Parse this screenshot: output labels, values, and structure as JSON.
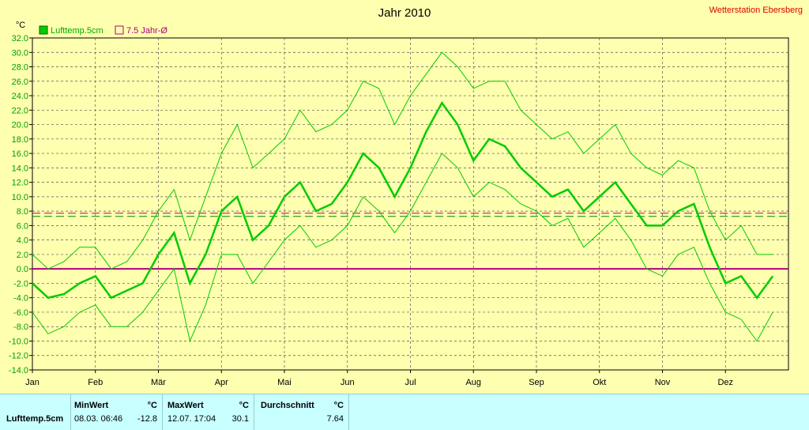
{
  "chart_data": {
    "type": "line",
    "title": "Jahr 2010",
    "station": "Wetterstation Ebersberg",
    "yunit": "°C",
    "ylim": [
      -14,
      32
    ],
    "yticks": [
      "32.0",
      "30.0",
      "28.0",
      "26.0",
      "24.0",
      "22.0",
      "20.0",
      "18.0",
      "16.0",
      "14.0",
      "12.0",
      "10.0",
      "8.0",
      "6.0",
      "4.0",
      "2.0",
      "0.0",
      "-2.0",
      "-4.0",
      "-6.0",
      "-8.0",
      "-10.0",
      "-12.0",
      "-14.0"
    ],
    "months": [
      "Jan",
      "Feb",
      "Mär",
      "Apr",
      "Mai",
      "Jun",
      "Jul",
      "Aug",
      "Sep",
      "Okt",
      "Nov",
      "Dez"
    ],
    "grid": true,
    "legend_position": "top-left",
    "series": [
      {
        "name": "Lufttemp.5cm",
        "color": "#00cc00",
        "x_month": [
          0,
          0.25,
          0.5,
          0.75,
          1,
          1.25,
          1.5,
          1.75,
          2,
          2.25,
          2.5,
          2.75,
          3,
          3.25,
          3.5,
          3.75,
          4,
          4.25,
          4.5,
          4.75,
          5,
          5.25,
          5.5,
          5.75,
          6,
          6.25,
          6.5,
          6.75,
          7,
          7.25,
          7.5,
          7.75,
          8,
          8.25,
          8.5,
          8.75,
          9,
          9.25,
          9.5,
          9.75,
          10,
          10.25,
          10.5,
          10.75,
          11,
          11.25,
          11.5,
          11.75
        ],
        "mean": [
          -2,
          -4,
          -3.5,
          -2,
          -1,
          -4,
          -3,
          -2,
          2,
          5,
          -2,
          2,
          8,
          10,
          4,
          6,
          10,
          12,
          8,
          9,
          12,
          16,
          14,
          10,
          14,
          19,
          23,
          20,
          15,
          18,
          17,
          14,
          12,
          10,
          11,
          8,
          10,
          12,
          9,
          6,
          6,
          8,
          9,
          3,
          -2,
          -1,
          -4,
          -1
        ],
        "max": [
          2,
          0,
          1,
          3,
          3,
          0,
          1,
          4,
          8,
          11,
          4,
          10,
          16,
          20,
          14,
          16,
          18,
          22,
          19,
          20,
          22,
          26,
          25,
          20,
          24,
          27,
          30,
          28,
          25,
          26,
          26,
          22,
          20,
          18,
          19,
          16,
          18,
          20,
          16,
          14,
          13,
          15,
          14,
          8,
          4,
          6,
          2,
          2
        ],
        "min": [
          -6,
          -9,
          -8,
          -6,
          -5,
          -8,
          -8,
          -6,
          -3,
          0,
          -10,
          -5,
          2,
          2,
          -2,
          1,
          4,
          6,
          3,
          4,
          6,
          10,
          8,
          5,
          8,
          12,
          16,
          14,
          10,
          12,
          11,
          9,
          8,
          6,
          7,
          3,
          5,
          7,
          4,
          0,
          -1,
          2,
          3,
          -2,
          -6,
          -7,
          -10,
          -6
        ]
      },
      {
        "name": "7.5 Jahr-Ø",
        "color": "#b0007f",
        "level": 7.5
      }
    ],
    "zero_line": 0
  },
  "stats": {
    "row_label": "Lufttemp.5cm",
    "min_label": "MinWert",
    "min_unit": "°C",
    "min_time": "08.03.  06:46",
    "min_value": "-12.8",
    "max_label": "MaxWert",
    "max_unit": "°C",
    "max_time": "12.07.  17:04",
    "max_value": "30.1",
    "avg_label": "Durchschnitt",
    "avg_unit": "°C",
    "avg_value": "7.64"
  }
}
